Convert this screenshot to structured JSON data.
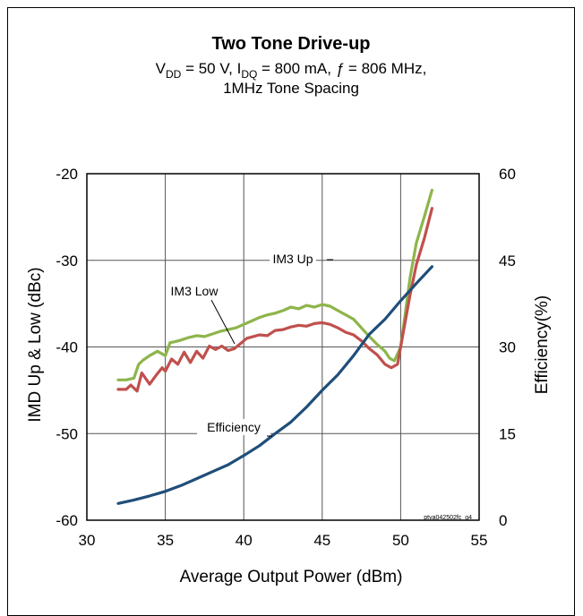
{
  "chart_data": {
    "type": "line",
    "title": "Two Tone  Drive-up",
    "subtitle_parts": [
      "V",
      "DD",
      " = 50 V, I",
      "DQ",
      " = 800 mA, ",
      "ƒ",
      " = 806 MHz,"
    ],
    "subtitle_line2": "1MHz Tone Spacing",
    "xlabel": "Average Output Power (dBm)",
    "ylabel_left": "IMD  Up & Low (dBc)",
    "ylabel_right": "Efficiency(%)",
    "xlim": [
      30,
      55
    ],
    "ylim_left": [
      -60,
      -20
    ],
    "ylim_right": [
      0,
      60
    ],
    "x_ticks": [
      30,
      35,
      40,
      45,
      50,
      55
    ],
    "y_left_ticks": [
      -60,
      -50,
      -40,
      -30,
      -20
    ],
    "y_right_ticks": [
      0,
      15,
      30,
      45,
      60
    ],
    "grid": true,
    "figure_id": "ptva042502fc_g4",
    "annotations": [
      {
        "text": "IM3 Up",
        "series": "IM3 Up"
      },
      {
        "text": "IM3 Low",
        "series": "IM3 Low"
      },
      {
        "text": "Efficiency",
        "series": "Efficiency"
      }
    ],
    "series": [
      {
        "name": "IM3 Up",
        "axis": "left",
        "color": "#8db54a",
        "x": [
          32.0,
          32.5,
          33.0,
          33.3,
          33.6,
          34.0,
          34.5,
          35.0,
          35.3,
          35.6,
          36.0,
          36.5,
          37.0,
          37.5,
          38.0,
          38.5,
          39.0,
          39.5,
          40.0,
          40.5,
          41.0,
          41.5,
          42.0,
          42.5,
          43.0,
          43.5,
          44.0,
          44.5,
          45.0,
          45.5,
          46.0,
          46.5,
          47.0,
          47.5,
          48.0,
          48.5,
          49.0,
          49.3,
          49.6,
          50.0,
          50.3,
          50.6,
          51.0,
          51.5,
          52.0
        ],
        "y": [
          -43.8,
          -43.8,
          -43.6,
          -42.0,
          -41.5,
          -41.0,
          -40.5,
          -41.0,
          -39.5,
          -39.4,
          -39.2,
          -38.9,
          -38.7,
          -38.8,
          -38.5,
          -38.2,
          -38.0,
          -37.8,
          -37.4,
          -37.0,
          -36.6,
          -36.3,
          -36.1,
          -35.8,
          -35.4,
          -35.6,
          -35.2,
          -35.4,
          -35.1,
          -35.3,
          -35.8,
          -36.3,
          -36.8,
          -37.8,
          -38.8,
          -39.7,
          -40.5,
          -41.3,
          -41.6,
          -40.0,
          -36.0,
          -32.0,
          -28.0,
          -25.0,
          -21.9
        ]
      },
      {
        "name": "IM3 Low",
        "axis": "left",
        "color": "#c0504d",
        "x": [
          32.0,
          32.5,
          32.8,
          33.2,
          33.5,
          34.0,
          34.4,
          34.8,
          35.0,
          35.4,
          35.8,
          36.2,
          36.6,
          37.0,
          37.4,
          37.8,
          38.2,
          38.6,
          39.0,
          39.4,
          39.8,
          40.2,
          40.6,
          41.0,
          41.5,
          42.0,
          42.5,
          43.0,
          43.5,
          44.0,
          44.5,
          45.0,
          45.5,
          46.0,
          46.5,
          47.0,
          47.5,
          48.0,
          48.5,
          49.0,
          49.4,
          49.8,
          50.2,
          50.6,
          51.0,
          51.5,
          52.0
        ],
        "y": [
          -44.9,
          -44.9,
          -44.4,
          -45.1,
          -43.0,
          -44.3,
          -43.3,
          -42.4,
          -42.8,
          -41.4,
          -42.0,
          -40.6,
          -41.8,
          -40.5,
          -41.3,
          -39.9,
          -40.3,
          -39.9,
          -40.4,
          -40.2,
          -39.6,
          -39.0,
          -38.8,
          -38.6,
          -38.7,
          -38.1,
          -38.0,
          -37.7,
          -37.5,
          -37.6,
          -37.3,
          -37.2,
          -37.4,
          -37.8,
          -38.3,
          -38.6,
          -39.3,
          -40.2,
          -40.9,
          -42.0,
          -42.4,
          -42.0,
          -38.0,
          -34.0,
          -30.5,
          -27.5,
          -24.0
        ]
      },
      {
        "name": "Efficiency",
        "axis": "right",
        "color": "#1f4e79",
        "x": [
          32,
          33,
          34,
          35,
          36,
          37,
          38,
          39,
          40,
          41,
          42,
          43,
          44,
          45,
          46,
          47,
          48,
          49,
          50,
          51,
          52
        ],
        "y": [
          2.9,
          3.5,
          4.2,
          5.0,
          6.0,
          7.2,
          8.4,
          9.6,
          11.2,
          12.9,
          15.0,
          17.0,
          19.6,
          22.5,
          25.2,
          28.5,
          32.2,
          34.8,
          38.0,
          41.0,
          43.9
        ]
      }
    ]
  }
}
